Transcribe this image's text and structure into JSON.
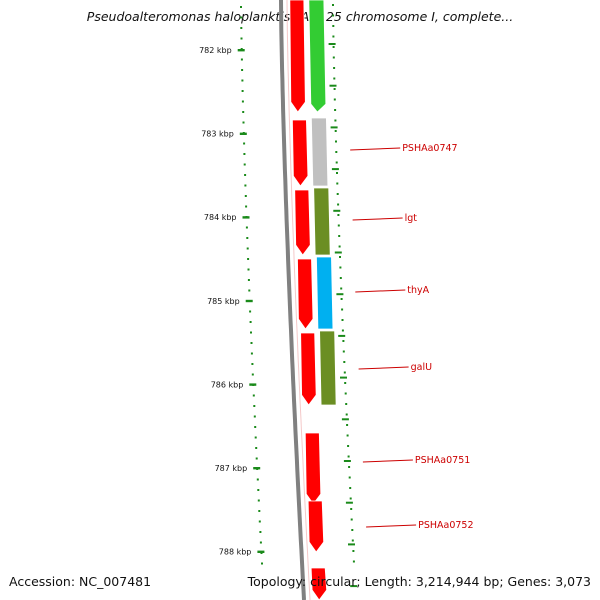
{
  "title": "Pseudoalteromonas haloplanktis TAC125 chromosome I, complete...",
  "footer": {
    "accession": "Accession: NC_007481",
    "summary": "Topology: circular; Length: 3,214,944 bp; Genes: 3,073"
  },
  "colors": {
    "tick": "#1a8a1a",
    "backbone": "#808080",
    "label": "#cc0000",
    "strand_minus": "#ff0000",
    "strand_plus_a": "#33cc33",
    "cog_grey": "#c0c0c0",
    "cog_olive": "#6b8e23",
    "cog_blue": "#00b0f0"
  },
  "scale": {
    "major_ticks": [
      "782 kbp",
      "783 kbp",
      "784 kbp",
      "785 kbp",
      "786 kbp",
      "787 kbp",
      "788 kbp"
    ]
  },
  "genes": [
    {
      "label": "PSHAa0747"
    },
    {
      "label": "lgt"
    },
    {
      "label": "thyA"
    },
    {
      "label": "galU"
    },
    {
      "label": "PSHAa0751"
    },
    {
      "label": "PSHAa0752"
    }
  ]
}
